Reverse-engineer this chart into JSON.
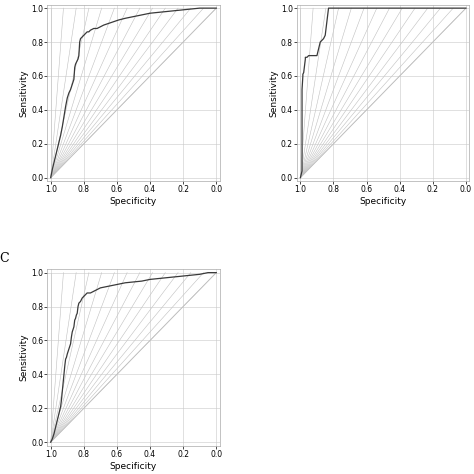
{
  "background_color": "white",
  "panel_bg": "white",
  "grid_color": "#c8c8c8",
  "diagonal_color": "#c0c0c0",
  "curve_color": "#3a3a3a",
  "curve_lw": 0.9,
  "tick_fontsize": 5.5,
  "label_fontsize": 6.5,
  "panel_label_fontsize": 9,
  "xlabel": "Specificity",
  "ylabel": "Sensitivity",
  "xticks": [
    1.0,
    0.8,
    0.6,
    0.4,
    0.2,
    0.0
  ],
  "yticks": [
    0.0,
    0.2,
    0.4,
    0.6,
    0.8,
    1.0
  ],
  "roc_A_fpr": [
    0.0,
    0.01,
    0.02,
    0.03,
    0.04,
    0.05,
    0.06,
    0.07,
    0.08,
    0.09,
    0.1,
    0.11,
    0.12,
    0.13,
    0.14,
    0.15,
    0.16,
    0.17,
    0.18,
    0.19,
    0.2,
    0.21,
    0.22,
    0.23,
    0.24,
    0.25,
    0.3,
    0.35,
    0.4,
    0.45,
    0.5,
    0.55,
    0.6,
    0.65,
    0.7,
    0.8,
    0.9,
    1.0
  ],
  "roc_A_tpr": [
    0.0,
    0.05,
    0.1,
    0.15,
    0.19,
    0.24,
    0.3,
    0.36,
    0.42,
    0.48,
    0.5,
    0.53,
    0.56,
    0.6,
    0.64,
    0.67,
    0.69,
    0.7,
    0.72,
    0.74,
    0.76,
    0.78,
    0.8,
    0.82,
    0.84,
    0.85,
    0.88,
    0.9,
    0.93,
    0.95,
    0.96,
    0.97,
    0.98,
    0.99,
    1.0,
    1.0,
    1.0,
    1.0
  ],
  "roc_B_fpr": [
    0.0,
    0.005,
    0.01,
    0.015,
    0.02,
    0.025,
    0.03,
    0.04,
    0.05,
    0.06,
    0.07,
    0.08,
    0.09,
    0.1,
    0.12,
    0.14,
    0.16,
    0.18,
    0.2,
    0.25,
    0.3,
    0.4,
    0.5,
    0.6,
    0.7,
    0.8,
    0.9,
    1.0
  ],
  "roc_B_tpr": [
    0.0,
    0.05,
    0.1,
    0.3,
    0.5,
    0.52,
    0.58,
    0.6,
    0.62,
    0.63,
    0.7,
    0.71,
    0.72,
    0.73,
    0.8,
    0.82,
    0.83,
    1.0,
    1.0,
    1.0,
    1.0,
    1.0,
    1.0,
    1.0,
    1.0,
    1.0,
    1.0,
    1.0
  ],
  "roc_C_fpr": [
    0.0,
    0.01,
    0.02,
    0.03,
    0.04,
    0.05,
    0.06,
    0.07,
    0.08,
    0.09,
    0.1,
    0.12,
    0.14,
    0.16,
    0.18,
    0.2,
    0.22,
    0.24,
    0.26,
    0.28,
    0.3,
    0.35,
    0.4,
    0.45,
    0.5,
    0.55,
    0.6,
    0.65,
    0.7,
    0.8,
    0.9,
    1.0
  ],
  "roc_C_tpr": [
    0.0,
    0.02,
    0.05,
    0.09,
    0.13,
    0.18,
    0.23,
    0.28,
    0.33,
    0.38,
    0.45,
    0.5,
    0.55,
    0.62,
    0.68,
    0.73,
    0.75,
    0.78,
    0.82,
    0.85,
    0.88,
    0.9,
    0.92,
    0.93,
    0.95,
    0.96,
    0.97,
    0.99,
    1.0,
    1.0,
    1.0,
    1.0
  ]
}
